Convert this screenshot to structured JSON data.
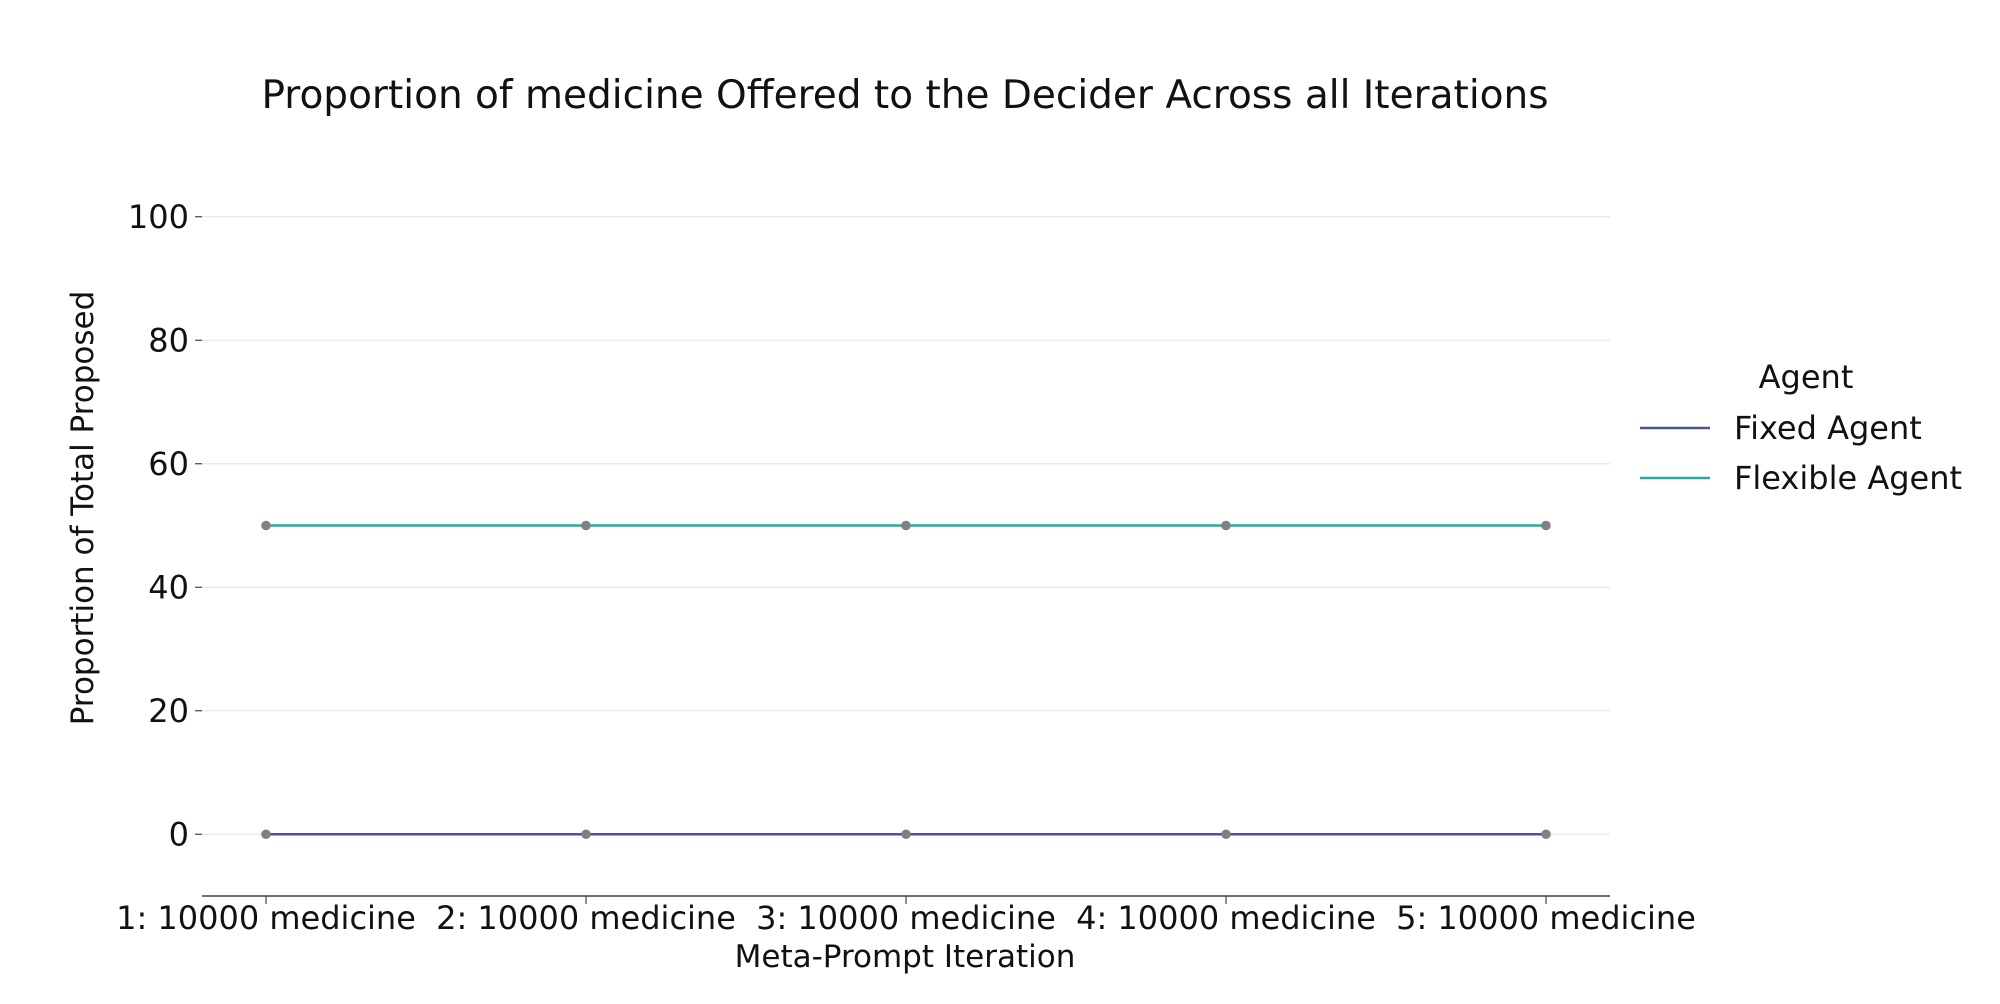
{
  "chart_data": {
    "type": "line",
    "title": "Proportion of medicine Offered to the Decider Across all Iterations",
    "xlabel": "Meta-Prompt Iteration",
    "ylabel": "Proportion of Total Proposed",
    "categories": [
      "1: 10000 medicine",
      "2: 10000 medicine",
      "3: 10000 medicine",
      "4: 10000 medicine",
      "5: 10000 medicine"
    ],
    "series": [
      {
        "name": "Fixed Agent",
        "values": [
          0,
          0,
          0,
          0,
          0
        ],
        "color": "#4a5396"
      },
      {
        "name": "Flexible Agent",
        "values": [
          50,
          50,
          50,
          50,
          50
        ],
        "color": "#2aa79e"
      }
    ],
    "ylim": [
      -10,
      110
    ],
    "yticks": [
      0,
      20,
      40,
      60,
      80,
      100
    ],
    "marker_color": "#808080",
    "grid": true,
    "legend": {
      "title": "Agent",
      "placement": "right"
    }
  }
}
